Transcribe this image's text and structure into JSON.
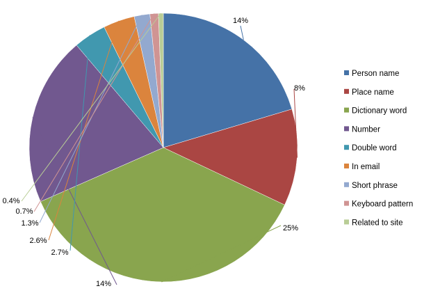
{
  "chart_data": {
    "type": "pie",
    "slices": [
      {
        "name": "Person name",
        "value": 14,
        "label": "14%",
        "color": "#4572A7"
      },
      {
        "name": "Place name",
        "value": 8,
        "label": "8%",
        "color": "#AA4643"
      },
      {
        "name": "Dictionary word",
        "value": 25,
        "label": "25%",
        "color": "#89A54E"
      },
      {
        "name": "Number",
        "value": 14,
        "label": "14%",
        "color": "#71588F"
      },
      {
        "name": "Double word",
        "value": 2.7,
        "label": "2.7%",
        "color": "#4198AF"
      },
      {
        "name": "In email",
        "value": 2.6,
        "label": "2.6%",
        "color": "#DB843D"
      },
      {
        "name": "Short phrase",
        "value": 1.3,
        "label": "1.3%",
        "color": "#93A9CF"
      },
      {
        "name": "Keyboard pattern",
        "value": 0.7,
        "label": "0.7%",
        "color": "#D09493"
      },
      {
        "name": "Related to site",
        "value": 0.4,
        "label": "0.4%",
        "color": "#B9CD96"
      }
    ],
    "legend_position": "right",
    "start_angle": "top, clockwise"
  }
}
